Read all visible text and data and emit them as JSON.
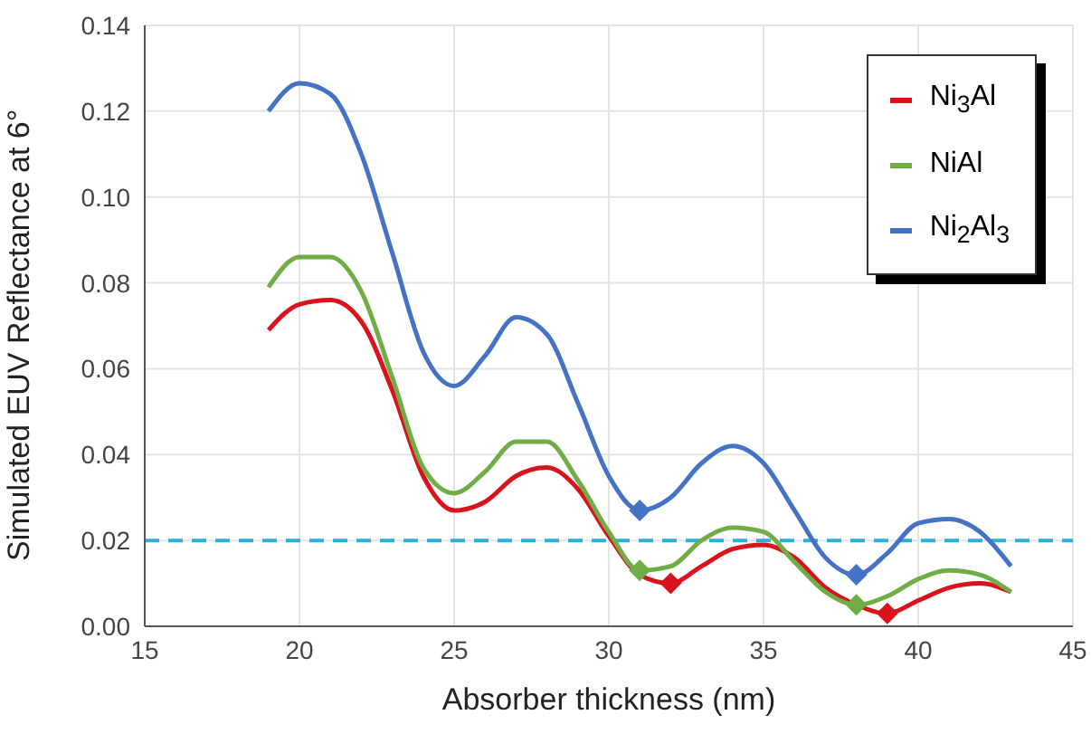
{
  "chart_data": {
    "type": "line",
    "xlabel": "Absorber thickness (nm)",
    "ylabel": "Simulated EUV Reflectance at 6°",
    "xlim": [
      15,
      45
    ],
    "xticks": [
      15,
      20,
      25,
      30,
      35,
      40,
      45
    ],
    "ylim": [
      0,
      0.14
    ],
    "yticks": [
      {
        "value": 0,
        "label": "0.00"
      },
      {
        "value": 0.02,
        "label": "0.02"
      },
      {
        "value": 0.04,
        "label": "0.04"
      },
      {
        "value": 0.06,
        "label": "0.06"
      },
      {
        "value": 0.08,
        "label": "0.08"
      },
      {
        "value": 0.1,
        "label": "0.10"
      },
      {
        "value": 0.12,
        "label": "0.12"
      },
      {
        "value": 0.14,
        "label": "0.14"
      }
    ],
    "grid": true,
    "legend": "top right",
    "marker": "none",
    "line_style": "solid",
    "ref_lines": [
      {
        "axis": "y",
        "value": 0.02,
        "color": "#2ab0d8",
        "line_style": "dashed"
      }
    ],
    "series": [
      {
        "name": "Ni$_{3}$Al",
        "color": "#d9121b",
        "x": [
          19,
          20,
          21,
          22,
          23,
          24,
          25,
          26,
          27,
          28,
          29,
          30,
          31,
          32,
          33,
          34,
          35,
          36,
          37,
          38,
          39,
          40,
          41,
          42,
          43
        ],
        "values": [
          0.069,
          0.075,
          0.076,
          0.071,
          0.055,
          0.035,
          0.027,
          0.029,
          0.035,
          0.037,
          0.032,
          0.021,
          0.012,
          0.01,
          0.014,
          0.018,
          0.019,
          0.016,
          0.009,
          0.005,
          0.003,
          0.006,
          0.009,
          0.01,
          0.008
        ]
      },
      {
        "name": "NiAl",
        "color": "#70ad47",
        "x": [
          19,
          20,
          21,
          22,
          23,
          24,
          25,
          26,
          27,
          28,
          29,
          30,
          31,
          32,
          33,
          34,
          35,
          36,
          37,
          38,
          39,
          40,
          41,
          42,
          43
        ],
        "values": [
          0.079,
          0.086,
          0.086,
          0.078,
          0.058,
          0.037,
          0.031,
          0.036,
          0.043,
          0.043,
          0.034,
          0.022,
          0.013,
          0.014,
          0.02,
          0.023,
          0.022,
          0.015,
          0.008,
          0.005,
          0.007,
          0.011,
          0.013,
          0.012,
          0.008
        ]
      },
      {
        "name": "Ni$_{2}$Al$_{3}$",
        "color": "#4472c4",
        "x": [
          19,
          20,
          21,
          22,
          23,
          24,
          25,
          26,
          27,
          28,
          29,
          30,
          31,
          32,
          33,
          34,
          35,
          36,
          37,
          38,
          39,
          40,
          41,
          42,
          43
        ],
        "values": [
          0.12,
          0.1265,
          0.124,
          0.11,
          0.087,
          0.064,
          0.056,
          0.063,
          0.072,
          0.068,
          0.052,
          0.035,
          0.027,
          0.03,
          0.038,
          0.042,
          0.038,
          0.027,
          0.016,
          0.012,
          0.017,
          0.024,
          0.025,
          0.022,
          0.014
        ]
      },
      {
        "type": "scatter",
        "marker": "diamond",
        "color": "#d9121b",
        "x": [
          32,
          39
        ],
        "values": [
          0.01,
          0.003
        ]
      },
      {
        "type": "scatter",
        "marker": "diamond",
        "color": "#70ad47",
        "x": [
          31,
          38
        ],
        "values": [
          0.013,
          0.005
        ]
      },
      {
        "type": "scatter",
        "marker": "diamond",
        "color": "#4472c4",
        "x": [
          31,
          38
        ],
        "values": [
          0.027,
          0.012
        ]
      }
    ]
  }
}
